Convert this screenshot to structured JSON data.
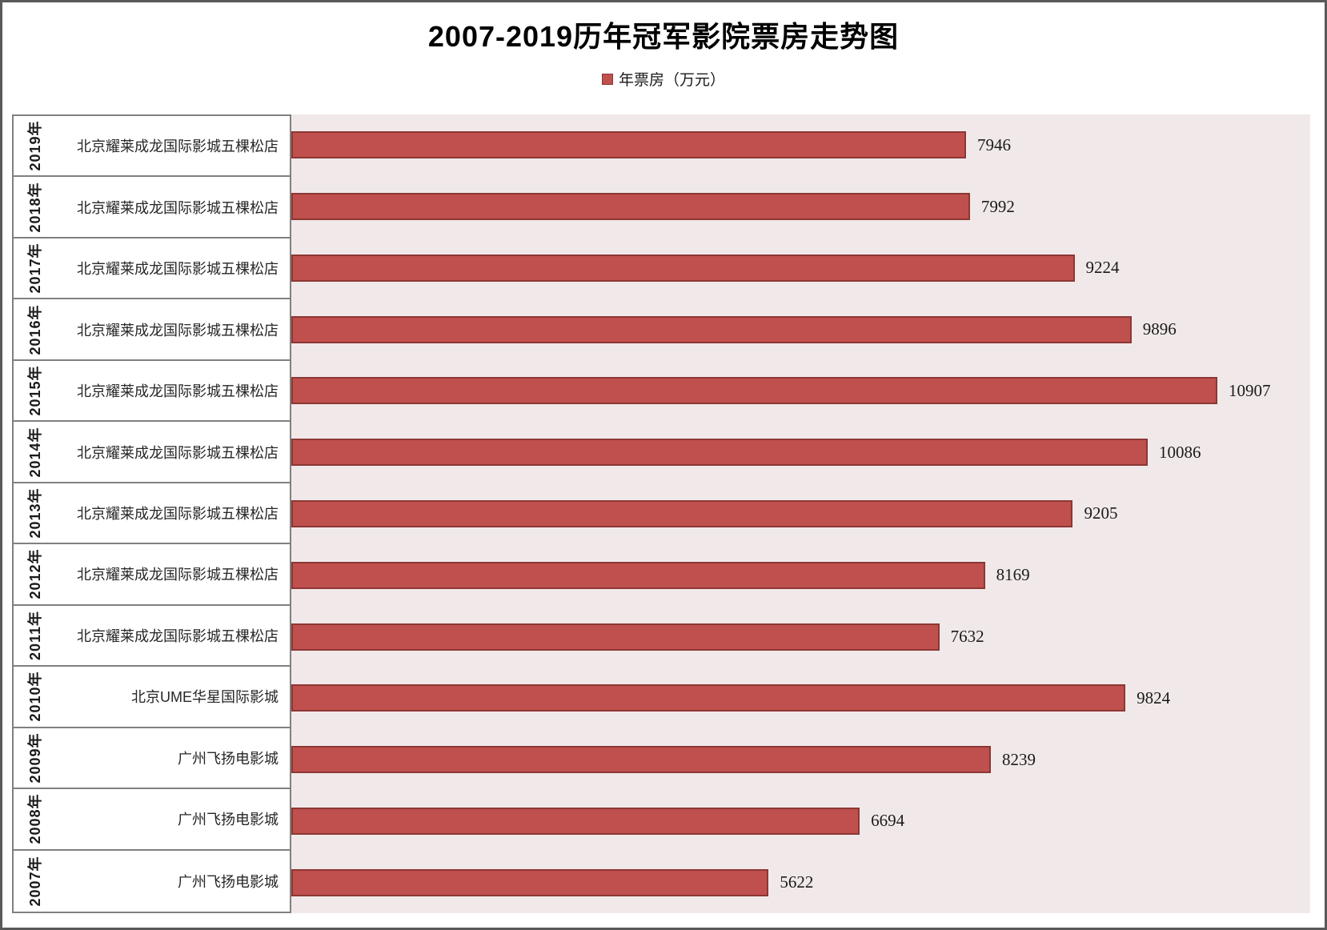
{
  "chart_data": {
    "type": "bar",
    "orientation": "horizontal",
    "title": "2007-2019历年冠军影院票房走势图",
    "legend_label": "年票房（万元）",
    "legend_position": "top-center",
    "categories": [
      "2019年",
      "2018年",
      "2017年",
      "2016年",
      "2015年",
      "2014年",
      "2013年",
      "2012年",
      "2011年",
      "2010年",
      "2009年",
      "2008年",
      "2007年"
    ],
    "cinema_labels": [
      "北京耀莱成龙国际影城五棵松店",
      "北京耀莱成龙国际影城五棵松店",
      "北京耀莱成龙国际影城五棵松店",
      "北京耀莱成龙国际影城五棵松店",
      "北京耀莱成龙国际影城五棵松店",
      "北京耀莱成龙国际影城五棵松店",
      "北京耀莱成龙国际影城五棵松店",
      "北京耀莱成龙国际影城五棵松店",
      "北京耀莱成龙国际影城五棵松店",
      "北京UME华星国际影城",
      "广州飞扬电影城",
      "广州飞扬电影城",
      "广州飞扬电影城"
    ],
    "values": [
      7946,
      7992,
      9224,
      9896,
      10907,
      10086,
      9205,
      8169,
      7632,
      9824,
      8239,
      6694,
      5622
    ],
    "xlim": [
      0,
      12000
    ],
    "grid": false,
    "data_labels": true,
    "colors": {
      "bar_fill": "#c0504d",
      "bar_border": "#8c3735",
      "plot_background": "#f1e9e9",
      "label_box_background": "#ffffff",
      "label_box_border": "#808080",
      "outer_border": "#595959",
      "text": "#1a1a1a"
    }
  }
}
